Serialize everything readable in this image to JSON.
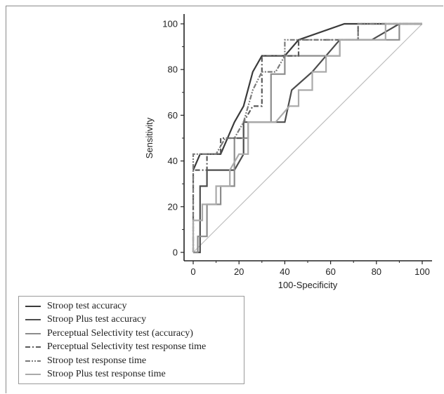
{
  "chart_data": {
    "type": "line",
    "xlabel": "100-Specificity",
    "ylabel": "Sensitivity",
    "xlim": [
      0,
      100
    ],
    "ylim": [
      0,
      100
    ],
    "xticks": [
      "0",
      "20",
      "40",
      "60",
      "80",
      "100"
    ],
    "yticks": [
      "0",
      "20",
      "40",
      "60",
      "80",
      "100"
    ],
    "grid": false,
    "legend_position": "bottom-left",
    "reference_line": {
      "x": [
        0,
        100
      ],
      "y": [
        0,
        100
      ],
      "color": "#bdbdbd"
    },
    "series": [
      {
        "name": "Stroop test accuracy",
        "color": "#3a3a3a",
        "dash": "solid",
        "x": [
          0,
          0,
          3,
          6,
          12,
          18,
          22,
          26,
          30,
          40,
          46,
          66,
          72,
          78,
          86,
          90,
          100
        ],
        "y": [
          36,
          36,
          43,
          43,
          43,
          57,
          64,
          79,
          86,
          86,
          93,
          100,
          100,
          100,
          100,
          100,
          100
        ]
      },
      {
        "name": "Stroop Plus test accuracy",
        "color": "#4d4d4d",
        "dash": "solid",
        "x": [
          0,
          3,
          3,
          6,
          6,
          12,
          18,
          22,
          22,
          26,
          40,
          43,
          52,
          64,
          78,
          90,
          100
        ],
        "y": [
          0,
          0,
          29,
          29,
          36,
          36,
          36,
          43,
          57,
          57,
          57,
          71,
          79,
          93,
          93,
          100,
          100
        ]
      },
      {
        "name": "Perceptual Selectivity test (accuracy)",
        "color": "#8c8c8c",
        "dash": "solid",
        "x": [
          0,
          2,
          2,
          6,
          6,
          12,
          12,
          18,
          18,
          24,
          24,
          34,
          34,
          40,
          40,
          53,
          64,
          64,
          90,
          90,
          100
        ],
        "y": [
          0,
          0,
          7,
          7,
          21,
          21,
          29,
          29,
          50,
          50,
          57,
          57,
          78,
          78,
          86,
          86,
          86,
          93,
          93,
          100,
          100
        ]
      },
      {
        "name": "Perceptual Selectivity test response time",
        "color": "#5a5a5a",
        "dash": "dashdot",
        "x": [
          0,
          0,
          6,
          6,
          12,
          12,
          22,
          22,
          26,
          30,
          30,
          40,
          40,
          46,
          46,
          72,
          72,
          76,
          76,
          100
        ],
        "y": [
          0,
          36,
          36,
          43,
          43,
          50,
          50,
          57,
          64,
          64,
          86,
          86,
          86,
          86,
          93,
          93,
          100,
          100,
          100,
          100
        ]
      },
      {
        "name": "Stroop test response time",
        "color": "#7a7a7a",
        "dash": "dashdotdot",
        "x": [
          0,
          0,
          6,
          10,
          14,
          18,
          22,
          26,
          30,
          36,
          40,
          40,
          46,
          52,
          58,
          72,
          72,
          100
        ],
        "y": [
          0,
          43,
          43,
          43,
          50,
          50,
          57,
          71,
          79,
          79,
          86,
          93,
          93,
          93,
          93,
          93,
          100,
          100
        ]
      },
      {
        "name": "Stroop Plus test  response time",
        "color": "#aaaaaa",
        "dash": "solid",
        "x": [
          0,
          0,
          4,
          4,
          10,
          10,
          16,
          16,
          20,
          24,
          24,
          36,
          42,
          46,
          46,
          52,
          52,
          58,
          58,
          64,
          64,
          84,
          84,
          90,
          90,
          100
        ],
        "y": [
          0,
          14,
          14,
          21,
          21,
          29,
          29,
          36,
          43,
          43,
          57,
          57,
          64,
          64,
          71,
          71,
          79,
          79,
          86,
          86,
          93,
          93,
          100,
          100,
          100,
          100
        ]
      }
    ]
  }
}
